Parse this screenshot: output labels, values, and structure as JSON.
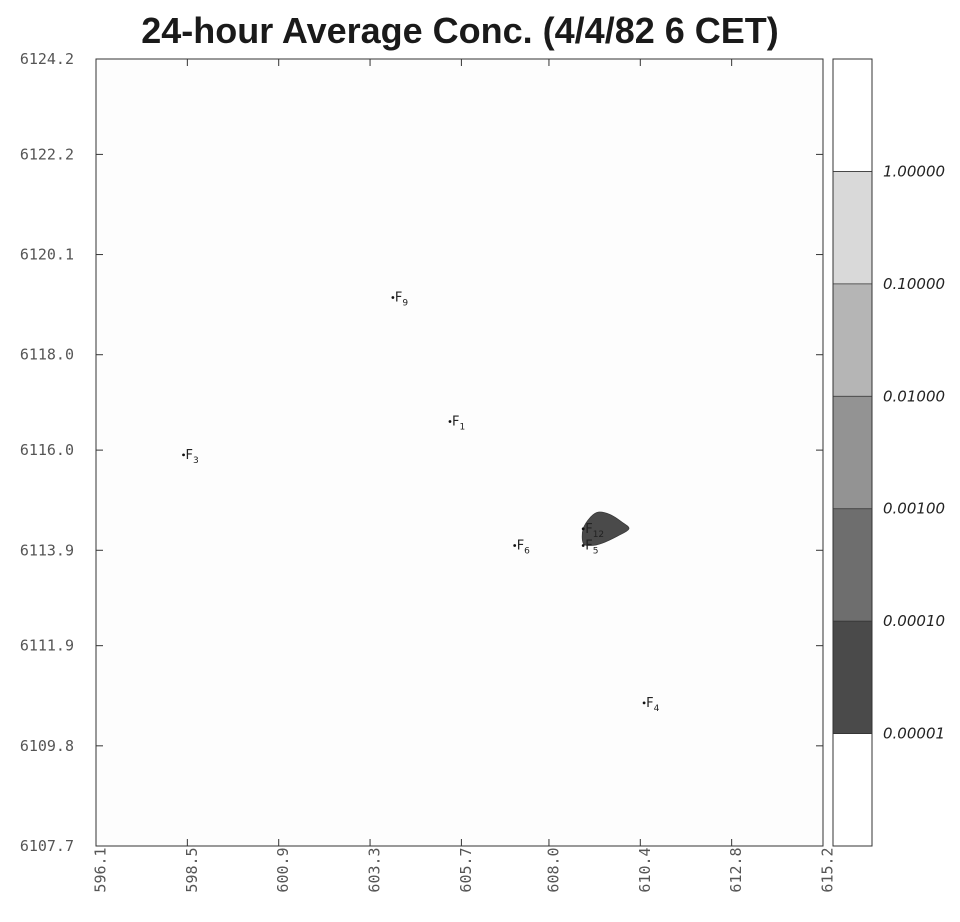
{
  "chart_data": {
    "type": "contour",
    "title": "24-hour Average Conc. (4/4/82 6 CET)",
    "xlabel": "",
    "ylabel": "",
    "xlim": [
      596.1,
      615.2
    ],
    "ylim": [
      6107.7,
      6124.2
    ],
    "x_ticks": [
      596.1,
      598.5,
      600.9,
      603.3,
      605.7,
      608.0,
      610.4,
      612.8,
      615.2
    ],
    "x_tick_labels": [
      "596.1",
      "598.5",
      "600.9",
      "603.3",
      "605.7",
      "608.0",
      "610.4",
      "612.8",
      "615.2"
    ],
    "y_ticks": [
      6107.7,
      6109.8,
      6111.9,
      6113.9,
      6116.0,
      6118.0,
      6120.1,
      6122.2,
      6124.2
    ],
    "y_tick_labels": [
      "6107.7",
      "6109.8",
      "6111.9",
      "6113.9",
      "6116.0",
      "6118.0",
      "6120.1",
      "6122.2",
      "6124.2"
    ],
    "colorbar": {
      "levels": [
        1e-05,
        0.0001,
        0.001,
        0.01,
        0.1,
        1.0
      ],
      "level_labels": [
        "0.00001",
        "0.00010",
        "0.00100",
        "0.01000",
        "0.10000",
        "1.00000"
      ],
      "bands": [
        {
          "from": null,
          "to": 1e-05,
          "color": "#ffffff"
        },
        {
          "from": 1e-05,
          "to": 0.0001,
          "color": "#4a4a4a"
        },
        {
          "from": 0.0001,
          "to": 0.001,
          "color": "#6e6e6e"
        },
        {
          "from": 0.001,
          "to": 0.01,
          "color": "#939393"
        },
        {
          "from": 0.01,
          "to": 0.1,
          "color": "#b5b5b5"
        },
        {
          "from": 0.1,
          "to": 1.0,
          "color": "#d9d9d9"
        },
        {
          "from": 1.0,
          "to": null,
          "color": "#ffffff"
        }
      ]
    },
    "plume": {
      "level": "0.00001 – 0.00010",
      "color": "#4a4a4a",
      "outline": [
        [
          608.9,
          6114.35
        ],
        [
          609.1,
          6114.6
        ],
        [
          609.3,
          6114.7
        ],
        [
          609.6,
          6114.65
        ],
        [
          609.9,
          6114.5
        ],
        [
          610.1,
          6114.35
        ],
        [
          609.8,
          6114.2
        ],
        [
          609.4,
          6114.05
        ],
        [
          609.1,
          6114.0
        ],
        [
          608.9,
          6114.05
        ]
      ]
    },
    "sources": [
      {
        "label": "F",
        "sub": "1",
        "x": 605.4,
        "y": 6116.6
      },
      {
        "label": "F",
        "sub": "3",
        "x": 598.4,
        "y": 6115.9
      },
      {
        "label": "F",
        "sub": "4",
        "x": 610.5,
        "y": 6110.7
      },
      {
        "label": "F",
        "sub": "5",
        "x": 608.9,
        "y": 6114.0
      },
      {
        "label": "F",
        "sub": "6",
        "x": 607.1,
        "y": 6114.0
      },
      {
        "label": "F",
        "sub": "9",
        "x": 603.9,
        "y": 6119.2
      },
      {
        "label": "F",
        "sub": "12",
        "x": 608.9,
        "y": 6114.35
      }
    ]
  }
}
